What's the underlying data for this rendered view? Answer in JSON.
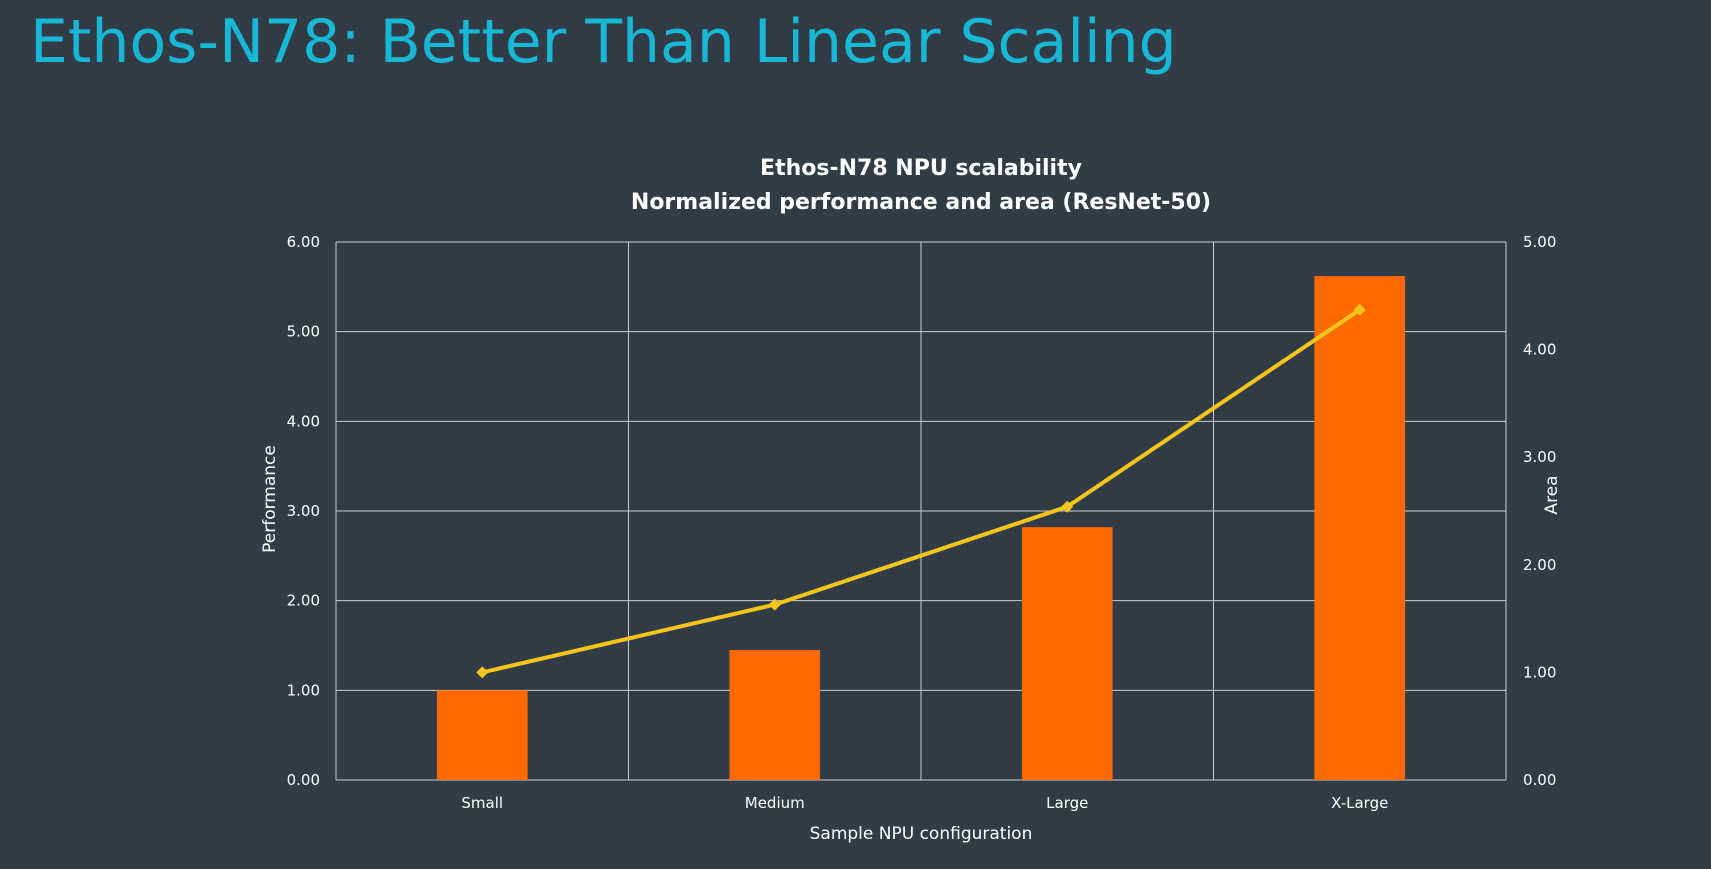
{
  "slide": {
    "title": "Ethos-N78: Better Than Linear Scaling"
  },
  "chart_data": {
    "type": "bar",
    "title": "Ethos-N78 NPU scalability",
    "subtitle": "Normalized performance and area (ResNet-50)",
    "categories": [
      "Small",
      "Medium",
      "Large",
      "X-Large"
    ],
    "xlabel": "Sample NPU configuration",
    "ylabel": "Performance",
    "y2label": "Area",
    "ylim": [
      0,
      6
    ],
    "y2lim": [
      0,
      5
    ],
    "yticks": [
      "0.00",
      "1.00",
      "2.00",
      "3.00",
      "4.00",
      "5.00",
      "6.00"
    ],
    "y2ticks": [
      "0.00",
      "1.00",
      "2.00",
      "3.00",
      "4.00",
      "5.00"
    ],
    "grid": true,
    "series": [
      {
        "type": "bar",
        "axis": "left",
        "values": [
          1.0,
          1.45,
          2.82,
          5.62
        ],
        "color": "#ff6a00"
      },
      {
        "type": "line",
        "axis": "right",
        "values": [
          1.0,
          1.63,
          2.54,
          4.37
        ],
        "color": "#f5c518"
      }
    ]
  }
}
